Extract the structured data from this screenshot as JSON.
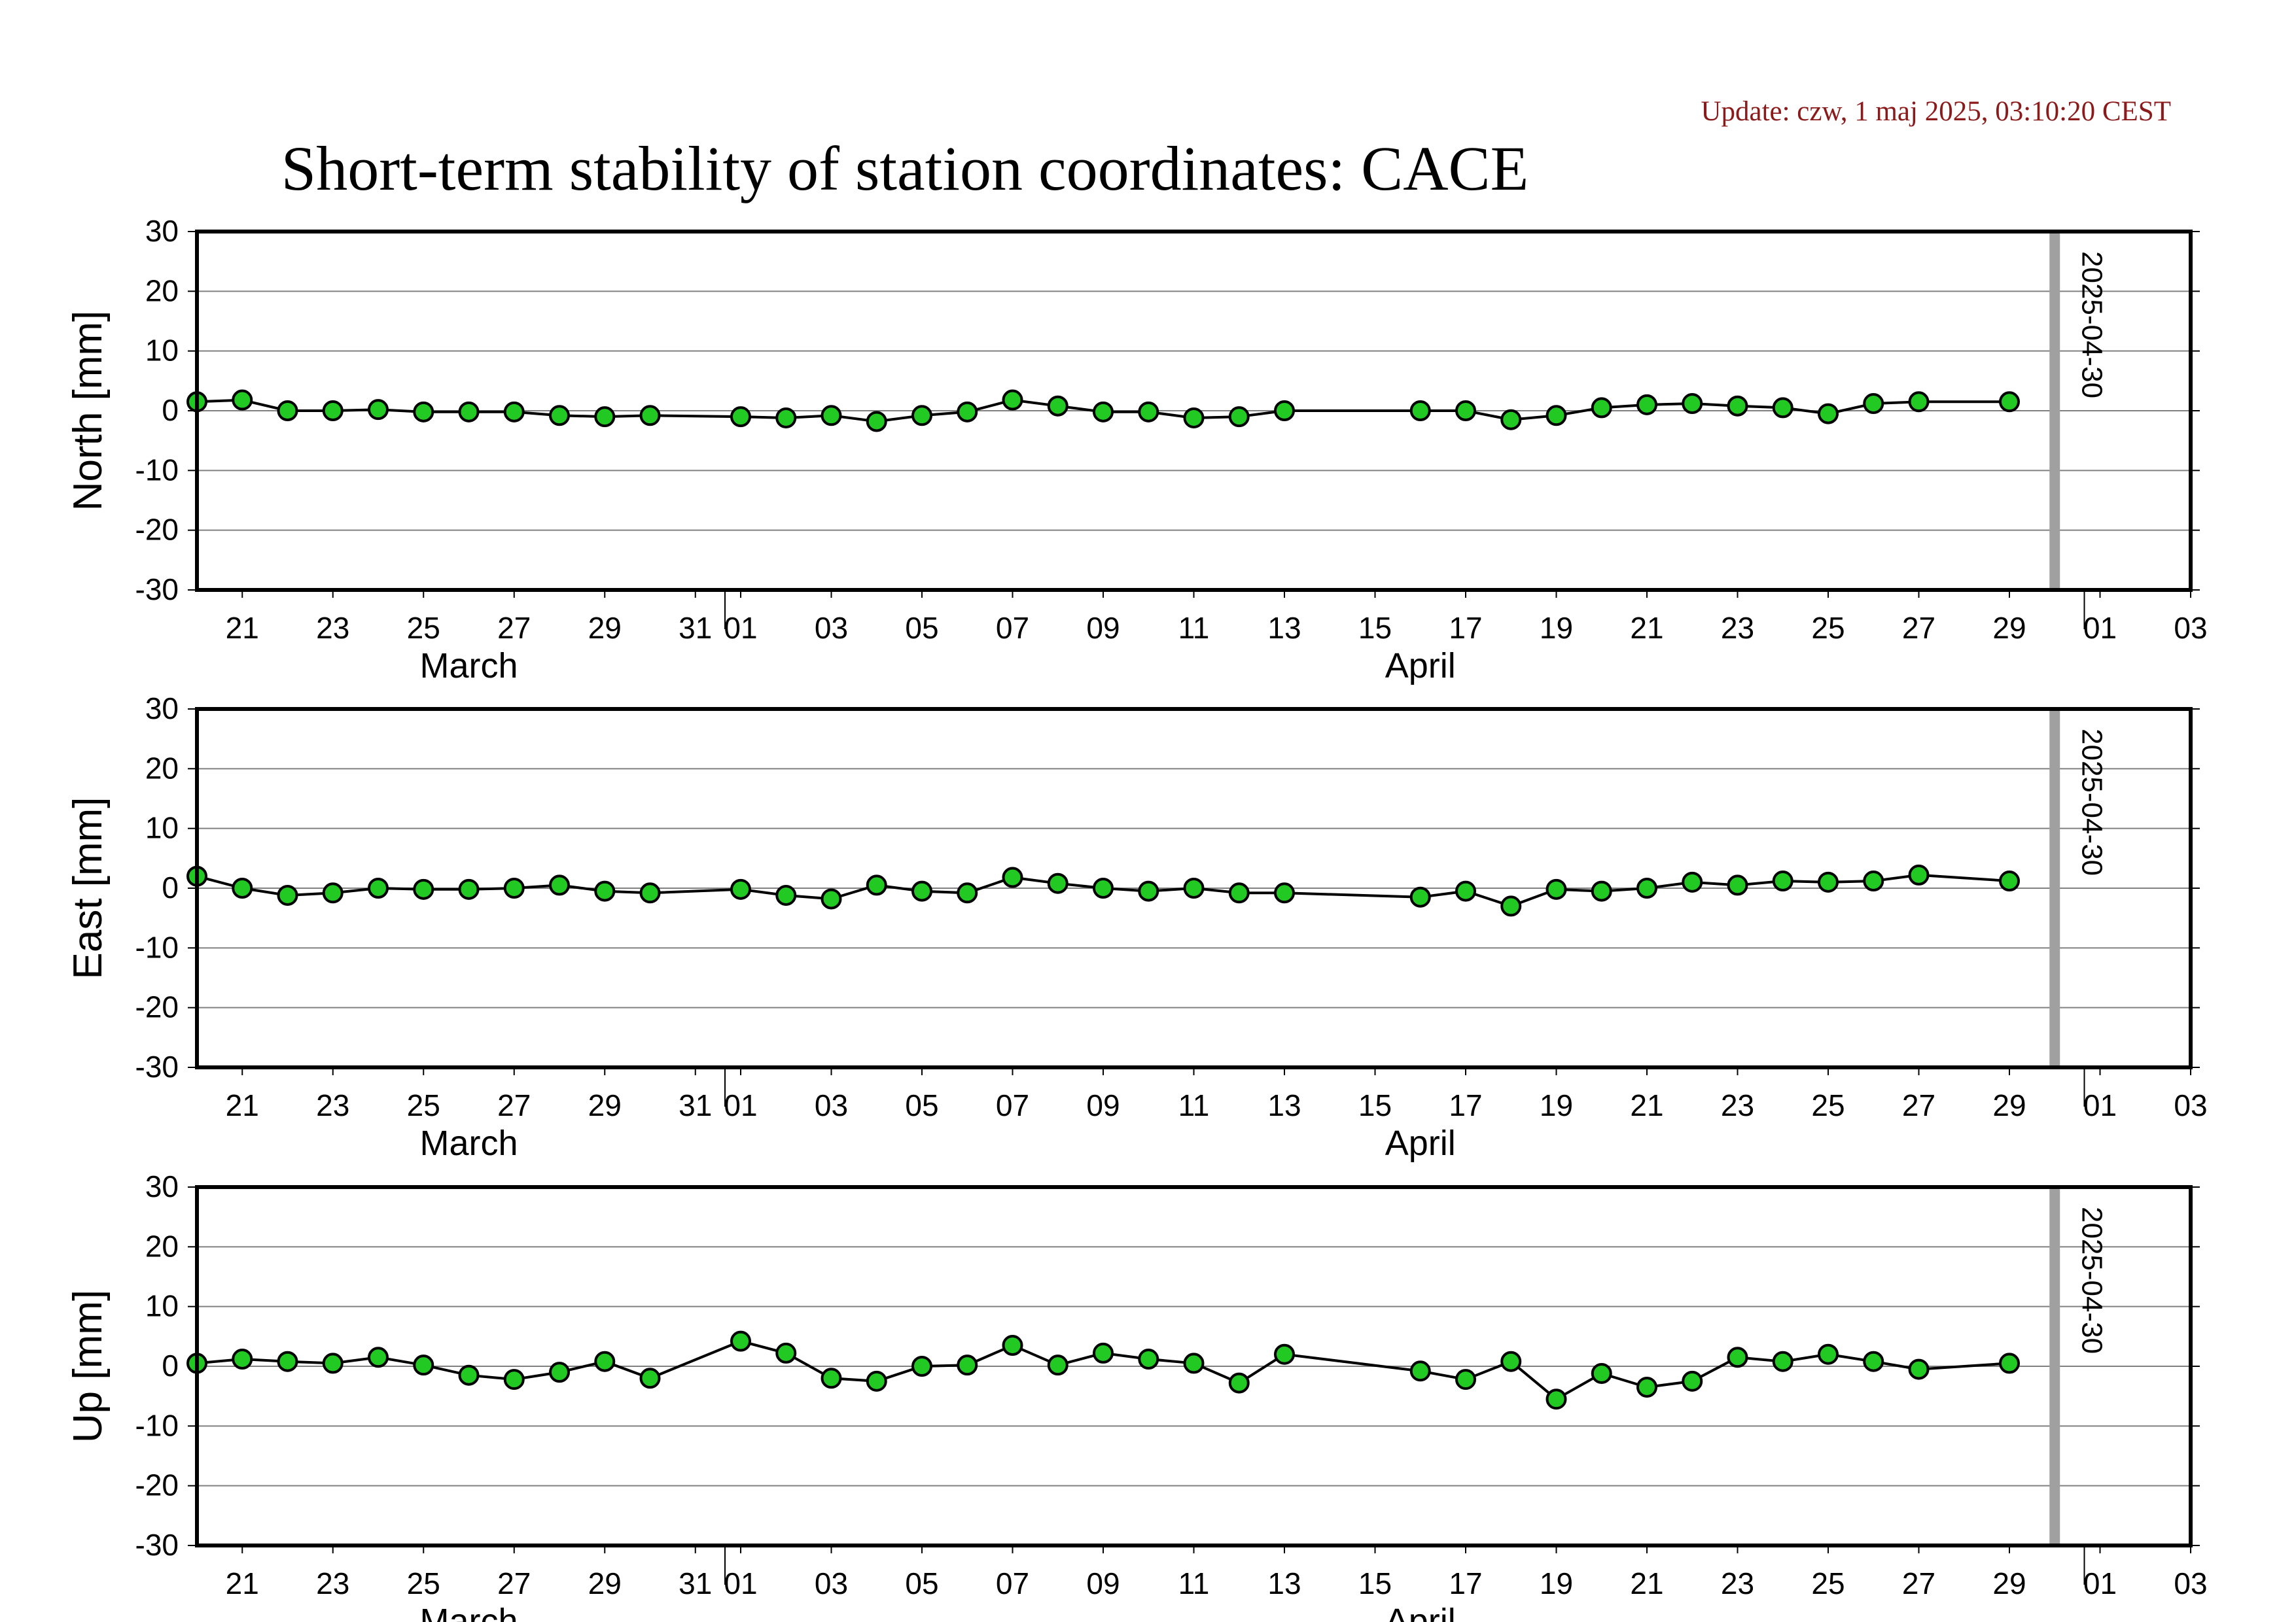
{
  "header": {
    "update": "Update: czw, 1 maj 2025, 03:10:20 CEST",
    "title": "Short-term stability of station coordinates: CACE"
  },
  "colors": {
    "update_text": "#8b1a1a",
    "marker_fill": "#22c922",
    "marker_edge": "#000000",
    "line": "#000000",
    "grid": "#808080",
    "date_marker": "#a0a0a0"
  },
  "chart_data": {
    "type": "line",
    "x_range": [
      "2025-03-20",
      "2025-05-03"
    ],
    "ylim": [
      -30,
      30
    ],
    "yticks": [
      30,
      20,
      10,
      0,
      -10,
      -20,
      -30
    ],
    "grid": "horizontal",
    "x_tick_labels": [
      "21",
      "23",
      "25",
      "27",
      "29",
      "31",
      "01",
      "03",
      "05",
      "07",
      "09",
      "11",
      "13",
      "15",
      "17",
      "19",
      "21",
      "23",
      "25",
      "27",
      "29",
      "01",
      "03"
    ],
    "month_labels": [
      "March",
      "April"
    ],
    "marker_date": "2025-04-30",
    "x": [
      "2025-03-20",
      "2025-03-21",
      "2025-03-22",
      "2025-03-23",
      "2025-03-24",
      "2025-03-25",
      "2025-03-26",
      "2025-03-27",
      "2025-03-28",
      "2025-03-29",
      "2025-03-30",
      "2025-04-01",
      "2025-04-02",
      "2025-04-03",
      "2025-04-04",
      "2025-04-05",
      "2025-04-06",
      "2025-04-07",
      "2025-04-08",
      "2025-04-09",
      "2025-04-10",
      "2025-04-11",
      "2025-04-12",
      "2025-04-13",
      "2025-04-16",
      "2025-04-17",
      "2025-04-18",
      "2025-04-19",
      "2025-04-20",
      "2025-04-21",
      "2025-04-22",
      "2025-04-23",
      "2025-04-24",
      "2025-04-25",
      "2025-04-26",
      "2025-04-27",
      "2025-04-29"
    ],
    "panels": [
      {
        "ylabel": "North [mm]",
        "values": [
          1.5,
          1.8,
          0,
          0,
          0.2,
          -0.2,
          -0.2,
          -0.2,
          -0.8,
          -1,
          -0.8,
          -1,
          -1.2,
          -0.8,
          -1.8,
          -0.8,
          -0.2,
          1.8,
          0.8,
          -0.2,
          -0.2,
          -1.2,
          -1,
          0,
          0,
          0,
          -1.5,
          -0.8,
          0.5,
          1,
          1.2,
          0.8,
          0.5,
          -0.5,
          1.2,
          1.5,
          1.5
        ]
      },
      {
        "ylabel": "East [mm]",
        "values": [
          2,
          0,
          -1.2,
          -0.8,
          0,
          -0.2,
          -0.2,
          0,
          0.5,
          -0.5,
          -0.8,
          -0.2,
          -1.2,
          -1.8,
          0.5,
          -0.5,
          -0.8,
          1.8,
          0.8,
          0,
          -0.5,
          0,
          -0.8,
          -0.8,
          -1.5,
          -0.5,
          -3,
          -0.2,
          -0.5,
          0,
          1,
          0.5,
          1.2,
          1,
          1.2,
          2.2,
          1.2
        ]
      },
      {
        "ylabel": "Up [mm]",
        "values": [
          0.5,
          1.2,
          0.8,
          0.5,
          1.5,
          0.2,
          -1.5,
          -2.2,
          -1,
          0.8,
          -2,
          4.2,
          2.2,
          -2,
          -2.5,
          0,
          0.2,
          3.5,
          0.2,
          2.2,
          1.2,
          0.5,
          -2.8,
          2,
          -0.8,
          -2.2,
          0.8,
          -5.5,
          -1.2,
          -3.5,
          -2.5,
          1.5,
          0.8,
          2,
          0.8,
          -0.5,
          0.5
        ]
      }
    ]
  }
}
